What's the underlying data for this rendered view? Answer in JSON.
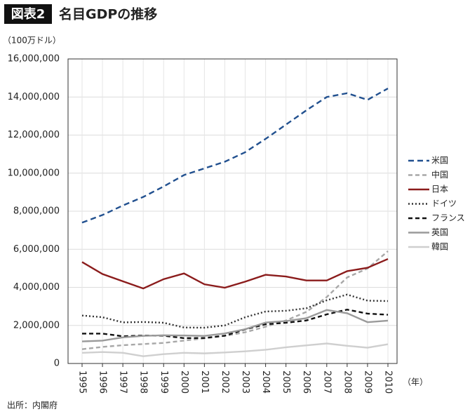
{
  "chart_data": {
    "type": "line",
    "badge": "図表2",
    "title": "名目GDPの推移",
    "y_unit": "（100万ドル）",
    "x_unit": "（年）",
    "source": "出所：内閣府",
    "categories": [
      "1995",
      "1996",
      "1997",
      "1998",
      "1999",
      "2000",
      "2001",
      "2002",
      "2003",
      "2004",
      "2005",
      "2006",
      "2007",
      "2008",
      "2009",
      "2010"
    ],
    "ylim": [
      0,
      16000000
    ],
    "yticks": [
      0,
      {
        "value": 2000000,
        "label": "2,000,000"
      },
      {
        "value": 4000000,
        "label": "4,000,000"
      },
      {
        "value": 6000000,
        "label": "6,000,000"
      },
      {
        "value": 8000000,
        "label": "8,000,000"
      },
      {
        "value": 10000000,
        "label": "10,000,000"
      },
      {
        "value": 12000000,
        "label": "12,000,000"
      },
      {
        "value": 14000000,
        "label": "14,000,000"
      },
      {
        "value": 16000000,
        "label": "16,000,000"
      }
    ],
    "grid": true,
    "series": [
      {
        "name": "米国",
        "color": "#21508f",
        "dash": "8,5",
        "values": [
          7400000,
          7800000,
          8300000,
          8750000,
          9300000,
          9900000,
          10250000,
          10600000,
          11100000,
          11800000,
          12550000,
          13300000,
          14000000,
          14200000,
          13850000,
          14450000
        ]
      },
      {
        "name": "中国",
        "color": "#a8a8a8",
        "dash": "6,4",
        "values": [
          750000,
          870000,
          960000,
          1020000,
          1080000,
          1200000,
          1320000,
          1450000,
          1640000,
          1930000,
          2260000,
          2710000,
          3490000,
          4520000,
          4990000,
          5900000
        ]
      },
      {
        "name": "日本",
        "color": "#8b1c1c",
        "dash": "none",
        "values": [
          5330000,
          4700000,
          4320000,
          3940000,
          4430000,
          4730000,
          4160000,
          3980000,
          4300000,
          4660000,
          4570000,
          4360000,
          4360000,
          4850000,
          5030000,
          5490000
        ]
      },
      {
        "name": "ドイツ",
        "color": "#333333",
        "dash": "2,3",
        "values": [
          2520000,
          2430000,
          2160000,
          2180000,
          2140000,
          1890000,
          1880000,
          2000000,
          2430000,
          2730000,
          2770000,
          2900000,
          3320000,
          3620000,
          3300000,
          3280000
        ]
      },
      {
        "name": "フランス",
        "color": "#111111",
        "dash": "6,4",
        "values": [
          1570000,
          1570000,
          1430000,
          1470000,
          1460000,
          1330000,
          1340000,
          1460000,
          1790000,
          2060000,
          2140000,
          2260000,
          2580000,
          2830000,
          2620000,
          2560000
        ]
      },
      {
        "name": "英国",
        "color": "#9a9a9a",
        "dash": "none",
        "values": [
          1160000,
          1200000,
          1370000,
          1450000,
          1480000,
          1470000,
          1450000,
          1580000,
          1800000,
          2150000,
          2230000,
          2380000,
          2810000,
          2640000,
          2170000,
          2250000
        ]
      },
      {
        "name": "韓国",
        "color": "#cfcfcf",
        "dash": "none",
        "values": [
          560000,
          600000,
          560000,
          380000,
          490000,
          560000,
          530000,
          580000,
          640000,
          720000,
          850000,
          950000,
          1050000,
          930000,
          830000,
          1010000
        ]
      }
    ]
  }
}
